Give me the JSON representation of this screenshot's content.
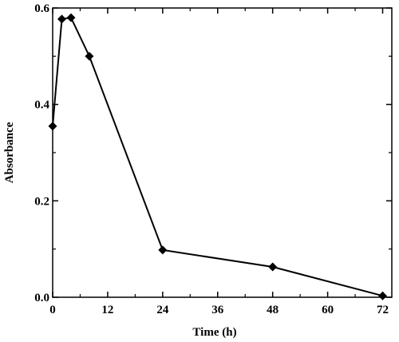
{
  "chart_data": {
    "type": "line",
    "xlabel": "Time (h)",
    "ylabel": "Absorbance",
    "xlim": [
      0,
      74
    ],
    "ylim": [
      0,
      0.6
    ],
    "x_ticks": [
      0,
      12,
      24,
      36,
      48,
      60,
      72
    ],
    "y_ticks": [
      0.0,
      0.2,
      0.4,
      0.6
    ],
    "x_tick_labels": [
      "0",
      "12",
      "24",
      "36",
      "48",
      "60",
      "72"
    ],
    "y_tick_labels": [
      "0.0",
      "0.2",
      "0.4",
      "0.6"
    ],
    "grid": false,
    "legend": "none",
    "marker": "diamond",
    "line_color": "#000000",
    "series": [
      {
        "x": [
          0,
          2,
          4,
          8,
          24,
          48,
          72
        ],
        "y": [
          0.355,
          0.577,
          0.58,
          0.5,
          0.098,
          0.063,
          0.003
        ]
      }
    ]
  }
}
